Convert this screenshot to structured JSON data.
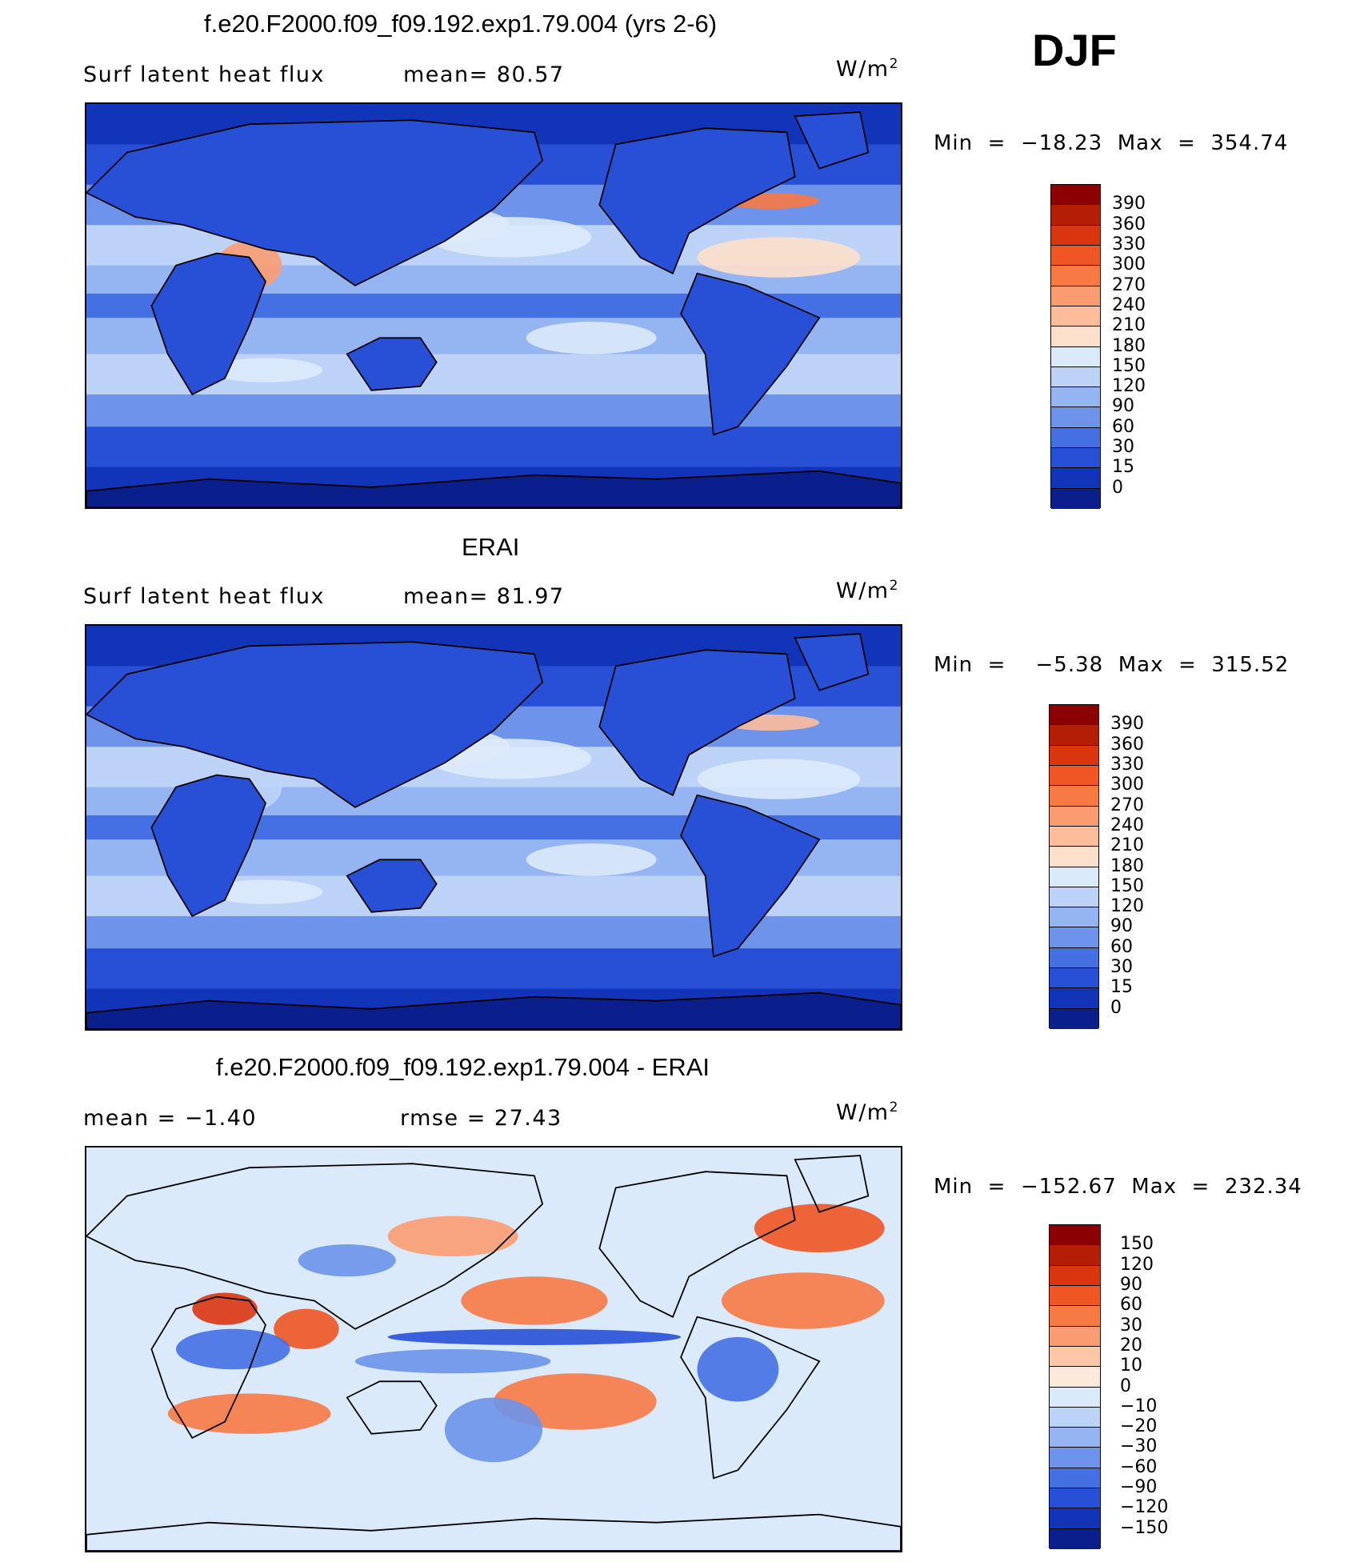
{
  "season": "DJF",
  "panels": [
    {
      "title": "f.e20.F2000.f09_f09.192.exp1.79.004 (yrs 2-6)",
      "left_label": "Surf  latent  heat  flux",
      "mid_label": "mean=   80.57",
      "units": "W/m",
      "units_sup": "2",
      "minmax": "Min  =  −18.23  Max  =  354.74",
      "kind": "full"
    },
    {
      "title": "ERAI",
      "left_label": "Surf  latent  heat  flux",
      "mid_label": "mean=   81.97",
      "units": "W/m",
      "units_sup": "2",
      "minmax": "Min  =    −5.38  Max  =  315.52",
      "kind": "full"
    },
    {
      "title": "f.e20.F2000.f09_f09.192.exp1.79.004 - ERAI",
      "left_label": "mean  =    −1.40",
      "mid_label": "rmse  =    27.43",
      "units": "W/m",
      "units_sup": "2",
      "minmax": "Min  =  −152.67  Max  =  232.34",
      "kind": "diff"
    }
  ],
  "colorbars": [
    {
      "labels": [
        "390",
        "360",
        "330",
        "300",
        "270",
        "240",
        "210",
        "180",
        "150",
        "120",
        "90",
        "60",
        "30",
        "15",
        "0"
      ],
      "colors": [
        "#8b0000",
        "#b41e05",
        "#d93610",
        "#f05524",
        "#f77a45",
        "#fb9c70",
        "#fdbd9a",
        "#fde0cb",
        "#dbeafa",
        "#bcd3f7",
        "#94b5f2",
        "#6d93ea",
        "#4570e4",
        "#2850d6",
        "#1234b8",
        "#0a1f8c"
      ]
    },
    {
      "labels": [
        "390",
        "360",
        "330",
        "300",
        "270",
        "240",
        "210",
        "180",
        "150",
        "120",
        "90",
        "60",
        "30",
        "15",
        "0"
      ],
      "colors": [
        "#8b0000",
        "#b41e05",
        "#d93610",
        "#f05524",
        "#f77a45",
        "#fb9c70",
        "#fdbd9a",
        "#fde0cb",
        "#dbeafa",
        "#bcd3f7",
        "#94b5f2",
        "#6d93ea",
        "#4570e4",
        "#2850d6",
        "#1234b8",
        "#0a1f8c"
      ]
    },
    {
      "labels": [
        "150",
        "120",
        "90",
        "60",
        "30",
        "20",
        "10",
        "0",
        "−10",
        "−20",
        "−30",
        "−60",
        "−90",
        "−120",
        "−150"
      ],
      "colors": [
        "#8b0000",
        "#b41e05",
        "#d93610",
        "#f05524",
        "#f77a45",
        "#fb9c70",
        "#fdc7a8",
        "#fde9dc",
        "#dbeafa",
        "#bcd3f7",
        "#94b5f2",
        "#6d93ea",
        "#4570e4",
        "#2850d6",
        "#1234b8",
        "#0a1f8c"
      ]
    }
  ],
  "chart_data": [
    {
      "type": "heatmap",
      "title": "f.e20.F2000.f09_f09.192.exp1.79.004 (yrs 2-6)",
      "subtitle": "Surf latent heat flux",
      "mean": 80.57,
      "min": -18.23,
      "max": 354.74,
      "units": "W/m2",
      "levels": [
        0,
        15,
        30,
        60,
        90,
        120,
        150,
        180,
        210,
        240,
        270,
        300,
        330,
        360,
        390
      ]
    },
    {
      "type": "heatmap",
      "title": "ERAI",
      "subtitle": "Surf latent heat flux",
      "mean": 81.97,
      "min": -5.38,
      "max": 315.52,
      "units": "W/m2",
      "levels": [
        0,
        15,
        30,
        60,
        90,
        120,
        150,
        180,
        210,
        240,
        270,
        300,
        330,
        360,
        390
      ]
    },
    {
      "type": "heatmap",
      "title": "f.e20.F2000.f09_f09.192.exp1.79.004 - ERAI",
      "mean": -1.4,
      "rmse": 27.43,
      "min": -152.67,
      "max": 232.34,
      "units": "W/m2",
      "levels": [
        -150,
        -120,
        -90,
        -60,
        -30,
        -20,
        -10,
        0,
        10,
        20,
        30,
        60,
        90,
        120,
        150
      ]
    }
  ]
}
